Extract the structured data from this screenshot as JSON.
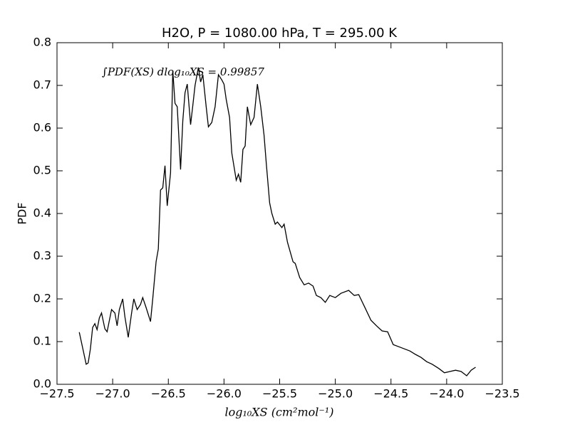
{
  "chart_data": {
    "type": "line",
    "title": "H2O, P = 1080.00 hPa, T = 295.00 K",
    "xlabel": "log₁₀XS (cm²mol⁻¹)",
    "ylabel": "PDF",
    "annotation": "∫PDF(XS) dlog₁₀XS =  0.99857",
    "xlim": [
      -27.5,
      -23.5
    ],
    "ylim": [
      0,
      0.8
    ],
    "xticks": [
      {
        "value": -27.5,
        "label": "−27.5"
      },
      {
        "value": -27,
        "label": "−27.0"
      },
      {
        "value": -26.5,
        "label": "−26.5"
      },
      {
        "value": -26,
        "label": "−26.0"
      },
      {
        "value": -25.5,
        "label": "−25.5"
      },
      {
        "value": -25,
        "label": "−25.0"
      },
      {
        "value": -24.5,
        "label": "−24.5"
      },
      {
        "value": -24,
        "label": "−24.0"
      },
      {
        "value": -23.5,
        "label": "−23.5"
      }
    ],
    "yticks": [
      {
        "value": 0,
        "label": "0.0"
      },
      0.1,
      0.2,
      0.3,
      0.4,
      0.5,
      0.6,
      0.7,
      0.8
    ],
    "color": "#000000",
    "x": [
      -27.3,
      -27.238,
      -27.22,
      -27.2,
      -27.18,
      -27.16,
      -27.14,
      -27.12,
      -27.1,
      -27.07,
      -27.05,
      -27.01,
      -26.98,
      -26.96,
      -26.94,
      -26.91,
      -26.89,
      -26.86,
      -26.83,
      -26.81,
      -26.78,
      -26.75,
      -26.73,
      -26.7,
      -26.66,
      -26.64,
      -26.61,
      -26.59,
      -26.57,
      -26.55,
      -26.53,
      -26.51,
      -26.48,
      -26.46,
      -26.44,
      -26.42,
      -26.39,
      -26.37,
      -26.35,
      -26.33,
      -26.3,
      -26.28,
      -26.26,
      -26.23,
      -26.21,
      -26.19,
      -26.16,
      -26.14,
      -26.11,
      -26.08,
      -26.05,
      -26.02,
      -26.0,
      -25.98,
      -25.95,
      -25.93,
      -25.89,
      -25.87,
      -25.85,
      -25.83,
      -25.81,
      -25.79,
      -25.76,
      -25.73,
      -25.7,
      -25.67,
      -25.64,
      -25.62,
      -25.59,
      -25.57,
      -25.54,
      -25.52,
      -25.48,
      -25.46,
      -25.43,
      -25.38,
      -25.36,
      -25.32,
      -25.28,
      -25.24,
      -25.2,
      -25.17,
      -25.13,
      -25.09,
      -25.05,
      -25.0,
      -24.95,
      -24.88,
      -24.83,
      -24.79,
      -24.74,
      -24.68,
      -24.63,
      -24.58,
      -24.53,
      -24.48,
      -24.43,
      -24.38,
      -24.33,
      -24.28,
      -24.23,
      -24.18,
      -24.13,
      -24.07,
      -24.02,
      -23.97,
      -23.92,
      -23.87,
      -23.82,
      -23.78,
      -23.74
    ],
    "values": [
      0.122,
      0.047,
      0.05,
      0.083,
      0.133,
      0.142,
      0.128,
      0.155,
      0.167,
      0.13,
      0.123,
      0.175,
      0.167,
      0.137,
      0.175,
      0.2,
      0.158,
      0.11,
      0.167,
      0.2,
      0.175,
      0.187,
      0.203,
      0.18,
      0.147,
      0.2,
      0.287,
      0.317,
      0.455,
      0.46,
      0.512,
      0.418,
      0.495,
      0.735,
      0.658,
      0.65,
      0.503,
      0.617,
      0.683,
      0.703,
      0.608,
      0.653,
      0.7,
      0.742,
      0.708,
      0.725,
      0.65,
      0.603,
      0.613,
      0.65,
      0.725,
      0.713,
      0.703,
      0.667,
      0.625,
      0.542,
      0.478,
      0.492,
      0.473,
      0.55,
      0.558,
      0.65,
      0.608,
      0.625,
      0.703,
      0.65,
      0.583,
      0.517,
      0.425,
      0.4,
      0.375,
      0.38,
      0.367,
      0.375,
      0.333,
      0.287,
      0.283,
      0.25,
      0.233,
      0.237,
      0.23,
      0.208,
      0.203,
      0.192,
      0.208,
      0.203,
      0.213,
      0.22,
      0.208,
      0.21,
      0.183,
      0.15,
      0.137,
      0.125,
      0.123,
      0.093,
      0.088,
      0.083,
      0.078,
      0.07,
      0.063,
      0.053,
      0.047,
      0.037,
      0.027,
      0.03,
      0.033,
      0.03,
      0.02,
      0.033,
      0.04
    ]
  }
}
